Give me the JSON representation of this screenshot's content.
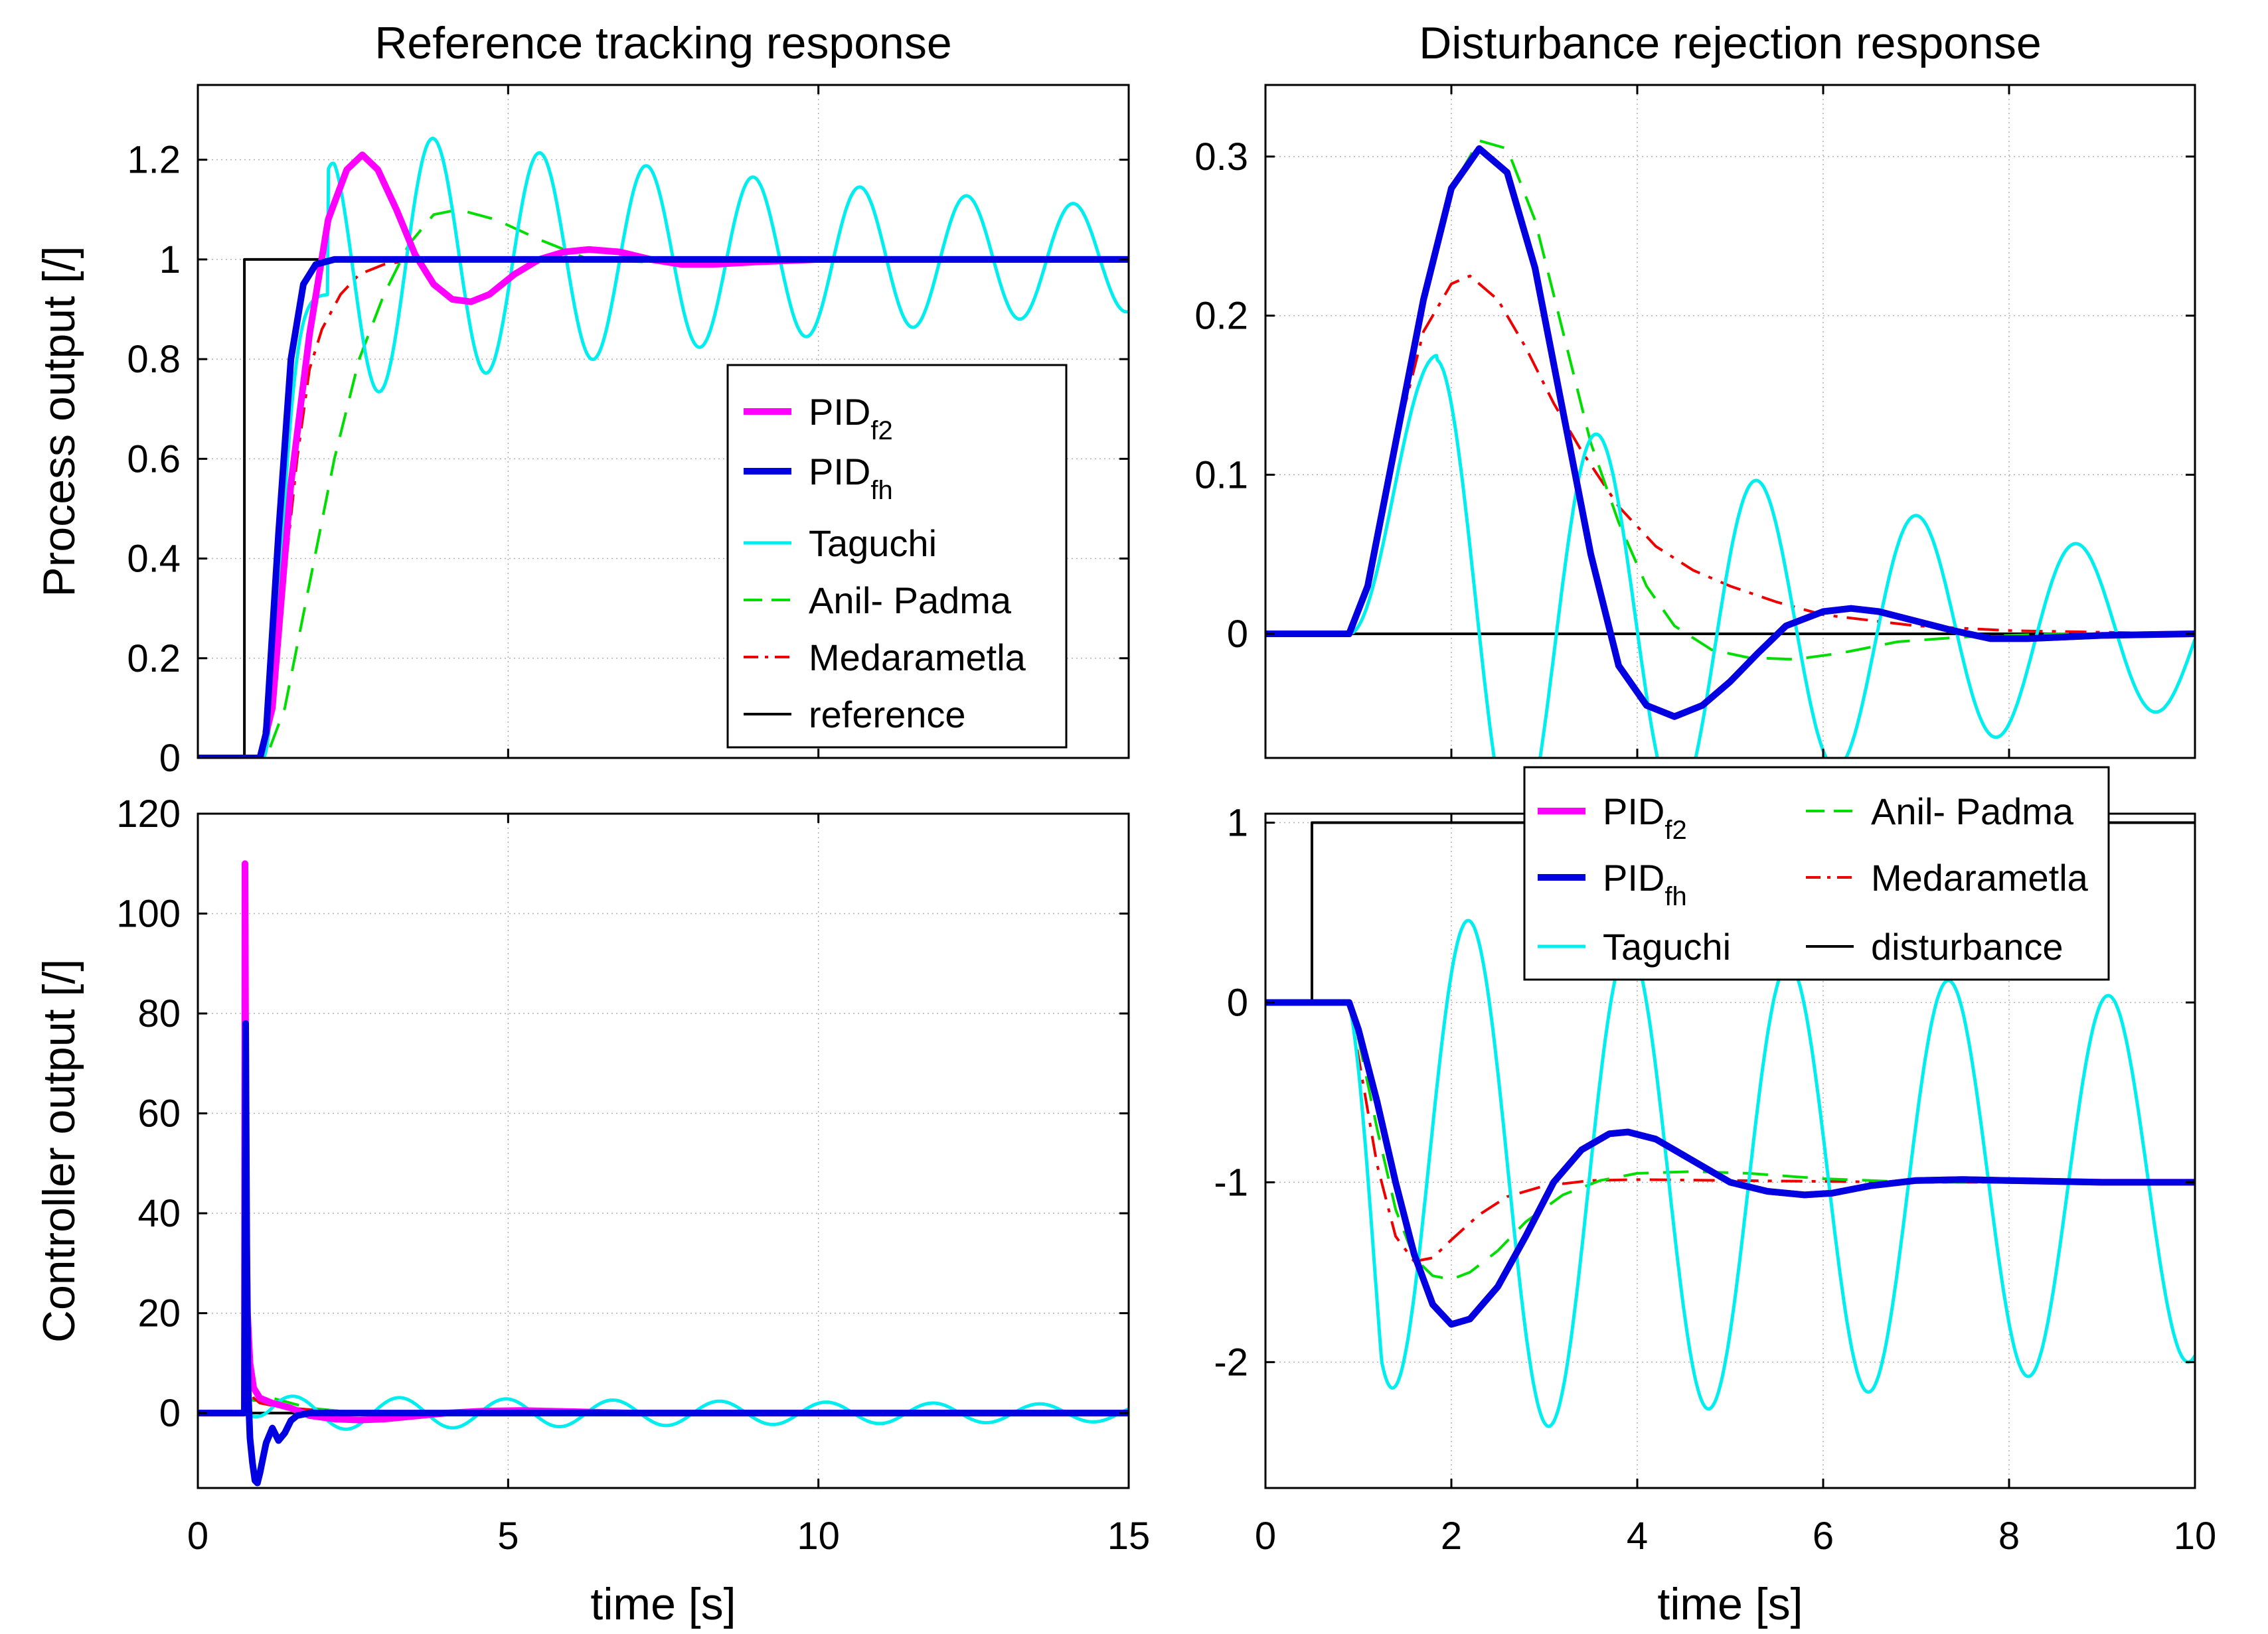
{
  "colors": {
    "PIDf2": "#ff00ff",
    "PIDfh": "#0000e0",
    "Taguchi": "#00eeee",
    "AnilPadma": "#00dd00",
    "Medarametla": "#ee0000",
    "black": "#000000"
  },
  "chart_data": [
    {
      "id": "ref_y",
      "type": "line",
      "title": "Reference tracking response",
      "xlabel": "",
      "ylabel": "Process output [/]",
      "xlim": [
        0,
        15
      ],
      "ylim": [
        0,
        1.35
      ],
      "xticks": [
        0,
        5,
        10,
        15
      ],
      "yticks": [
        0,
        0.2,
        0.4,
        0.6,
        0.8,
        1,
        1.2
      ],
      "ytick_labels": [
        "0",
        "0.2",
        "0.4",
        "0.6",
        "0.8",
        "1",
        "1.2"
      ],
      "grid": true,
      "legend": {
        "placement": "center-right",
        "entries": [
          {
            "series": "PIDf2",
            "label": "PID",
            "sub": "f2"
          },
          {
            "series": "PIDfh",
            "label": "PID",
            "sub": "fh"
          },
          {
            "series": "Taguchi",
            "label": "Taguchi"
          },
          {
            "series": "AnilPadma",
            "label": "Anil- Padma"
          },
          {
            "series": "Medarametla",
            "label": "Medarametla"
          },
          {
            "series": "reference",
            "label": "reference"
          }
        ]
      },
      "series": [
        {
          "name": "reference",
          "style": "black",
          "x": [
            0,
            0.75,
            0.75,
            15
          ],
          "y": [
            0,
            0,
            1,
            1
          ]
        },
        {
          "name": "Medarametla",
          "style": "Medarametla",
          "x": [
            0,
            1.0,
            1.3,
            1.6,
            1.8,
            2.0,
            2.3,
            2.6,
            3.0,
            3.5,
            4.0,
            5.0,
            6.0,
            8.0,
            15
          ],
          "y": [
            0,
            0,
            0.25,
            0.6,
            0.78,
            0.86,
            0.93,
            0.97,
            0.99,
            1.0,
            1.0,
            1.0,
            1.0,
            1.0,
            1.0
          ]
        },
        {
          "name": "AnilPadma",
          "style": "AnilPadma",
          "x": [
            0,
            1.1,
            1.4,
            1.8,
            2.2,
            2.6,
            3.0,
            3.4,
            3.8,
            4.2,
            4.8,
            5.5,
            6.3,
            7.2,
            8.0,
            9.0,
            15
          ],
          "y": [
            0,
            0,
            0.1,
            0.35,
            0.6,
            0.8,
            0.93,
            1.03,
            1.09,
            1.1,
            1.08,
            1.04,
            1.0,
            0.995,
            0.995,
            1.0,
            1.0
          ]
        },
        {
          "name": "Taguchi",
          "style": "Taguchi",
          "formula": "taguchiRef",
          "x0": 1.0,
          "x1": 15
        },
        {
          "name": "PIDf2",
          "style": "PIDf2",
          "x": [
            0,
            1.0,
            1.2,
            1.5,
            1.8,
            2.1,
            2.4,
            2.65,
            2.9,
            3.2,
            3.5,
            3.8,
            4.1,
            4.4,
            4.7,
            5.1,
            5.5,
            5.9,
            6.3,
            6.8,
            7.3,
            7.8,
            8.3,
            9.0,
            10,
            15
          ],
          "y": [
            0,
            0,
            0.1,
            0.55,
            0.85,
            1.08,
            1.18,
            1.21,
            1.18,
            1.1,
            1.01,
            0.95,
            0.92,
            0.915,
            0.93,
            0.97,
            1.0,
            1.015,
            1.02,
            1.015,
            1.0,
            0.99,
            0.99,
            0.995,
            1.0,
            1.0
          ]
        },
        {
          "name": "PIDfh",
          "style": "PIDfh",
          "x": [
            0,
            1.0,
            1.1,
            1.3,
            1.5,
            1.7,
            1.9,
            2.2,
            2.6,
            3.0,
            15
          ],
          "y": [
            0,
            0,
            0.05,
            0.45,
            0.8,
            0.95,
            0.99,
            1.0,
            1.0,
            1.0,
            1.0
          ]
        }
      ]
    },
    {
      "id": "dist_y",
      "type": "line",
      "title": "Disturbance rejection response",
      "xlabel": "",
      "ylabel": "",
      "xlim": [
        0,
        10
      ],
      "ylim": [
        -0.078,
        0.345
      ],
      "xticks": [
        0,
        2,
        4,
        6,
        8,
        10
      ],
      "yticks": [
        0,
        0.1,
        0.2,
        0.3
      ],
      "ytick_labels": [
        "0",
        "0.1",
        "0.2",
        "0.3"
      ],
      "grid": true,
      "series": [
        {
          "name": "zero",
          "style": "black",
          "x": [
            0,
            10
          ],
          "y": [
            0,
            0
          ]
        },
        {
          "name": "Medarametla",
          "style": "Medarametla",
          "x": [
            0,
            0.9,
            1.1,
            1.4,
            1.7,
            2.0,
            2.2,
            2.5,
            2.8,
            3.1,
            3.4,
            3.8,
            4.2,
            4.6,
            5.0,
            5.5,
            6.0,
            7.0,
            8.0,
            10
          ],
          "y": [
            0,
            0,
            0.03,
            0.12,
            0.19,
            0.22,
            0.225,
            0.21,
            0.18,
            0.145,
            0.115,
            0.08,
            0.055,
            0.04,
            0.03,
            0.02,
            0.012,
            0.005,
            0.002,
            0
          ]
        },
        {
          "name": "AnilPadma",
          "style": "AnilPadma",
          "x": [
            0,
            0.9,
            1.1,
            1.4,
            1.7,
            2.0,
            2.3,
            2.6,
            2.9,
            3.2,
            3.5,
            3.8,
            4.1,
            4.4,
            4.8,
            5.2,
            5.7,
            6.2,
            6.8,
            7.5,
            8.5,
            10
          ],
          "y": [
            0,
            0,
            0.03,
            0.12,
            0.21,
            0.28,
            0.31,
            0.305,
            0.26,
            0.19,
            0.12,
            0.07,
            0.03,
            0.005,
            -0.01,
            -0.015,
            -0.016,
            -0.012,
            -0.005,
            -0.002,
            0,
            0
          ]
        },
        {
          "name": "Taguchi",
          "style": "Taguchi",
          "formula": "taguchiDist",
          "x0": 0.9,
          "x1": 10
        },
        {
          "name": "PIDf2",
          "style": "PIDf2",
          "x": [
            0,
            0.9,
            1.1,
            1.4,
            1.7,
            2.0,
            2.3,
            2.6,
            2.9,
            3.2,
            3.5,
            3.8,
            4.1,
            4.4,
            4.7,
            5.0,
            5.3,
            5.6,
            6.0,
            6.3,
            6.6,
            7.0,
            7.4,
            7.8,
            8.2,
            9.0,
            10
          ],
          "y": [
            0,
            0,
            0.03,
            0.12,
            0.21,
            0.28,
            0.305,
            0.29,
            0.23,
            0.14,
            0.05,
            -0.02,
            -0.045,
            -0.052,
            -0.045,
            -0.03,
            -0.012,
            0.005,
            0.014,
            0.016,
            0.014,
            0.008,
            0.002,
            -0.003,
            -0.003,
            -0.001,
            0
          ]
        },
        {
          "name": "PIDfh",
          "style": "PIDfh",
          "x": [
            0,
            0.9,
            1.1,
            1.4,
            1.7,
            2.0,
            2.3,
            2.6,
            2.9,
            3.2,
            3.5,
            3.8,
            4.1,
            4.4,
            4.7,
            5.0,
            5.3,
            5.6,
            6.0,
            6.3,
            6.6,
            7.0,
            7.4,
            7.8,
            8.2,
            9.0,
            10
          ],
          "y": [
            0,
            0,
            0.03,
            0.12,
            0.21,
            0.28,
            0.305,
            0.29,
            0.23,
            0.14,
            0.05,
            -0.02,
            -0.045,
            -0.052,
            -0.045,
            -0.03,
            -0.012,
            0.005,
            0.014,
            0.016,
            0.014,
            0.008,
            0.002,
            -0.003,
            -0.003,
            -0.001,
            0
          ]
        }
      ]
    },
    {
      "id": "ref_u",
      "type": "line",
      "title": "",
      "xlabel": "time [s]",
      "ylabel": "Controller output [/]",
      "xlim": [
        0,
        15
      ],
      "ylim": [
        -15,
        120
      ],
      "xticks": [
        0,
        5,
        10,
        15
      ],
      "yticks": [
        0,
        20,
        40,
        60,
        80,
        100,
        120
      ],
      "ytick_labels": [
        "0",
        "20",
        "40",
        "60",
        "80",
        "100",
        "120"
      ],
      "grid": true,
      "series": [
        {
          "name": "zero",
          "style": "black",
          "x": [
            0,
            15
          ],
          "y": [
            0,
            0
          ]
        },
        {
          "name": "AnilPadma",
          "style": "AnilPadma",
          "x": [
            0,
            0.75,
            0.76,
            0.8,
            0.9,
            1.0,
            1.2,
            1.5,
            1.8,
            2.2,
            3.0,
            4.0,
            15
          ],
          "y": [
            0,
            0,
            6,
            3,
            2.5,
            2.5,
            3,
            2,
            1,
            0.5,
            0,
            0,
            0
          ]
        },
        {
          "name": "Medarametla",
          "style": "Medarametla",
          "x": [
            0,
            0.75,
            0.76,
            0.8,
            0.9,
            1.0,
            1.2,
            1.5,
            2.0,
            3.0,
            15
          ],
          "y": [
            0,
            0,
            10,
            6,
            3,
            2,
            1.5,
            1,
            0.5,
            0,
            0
          ]
        },
        {
          "name": "Taguchi",
          "style": "Taguchi",
          "formula": "taguchiU",
          "x0": 0.75,
          "x1": 15
        },
        {
          "name": "PIDf2",
          "style": "PIDf2",
          "x": [
            0,
            0.75,
            0.76,
            0.78,
            0.8,
            0.84,
            0.9,
            1.0,
            1.2,
            1.5,
            1.8,
            2.2,
            2.6,
            3.0,
            3.5,
            4.0,
            4.6,
            5.2,
            6.0,
            7.0,
            15
          ],
          "y": [
            0,
            0,
            110,
            40,
            20,
            10,
            5,
            3,
            2,
            1,
            -0.5,
            -1.2,
            -1.4,
            -1.2,
            -0.6,
            0,
            0.4,
            0.5,
            0.3,
            0,
            0
          ]
        },
        {
          "name": "PIDfh",
          "style": "PIDfh",
          "x": [
            0,
            0.75,
            0.77,
            0.79,
            0.81,
            0.84,
            0.88,
            0.92,
            0.96,
            1.0,
            1.05,
            1.1,
            1.2,
            1.3,
            1.4,
            1.5,
            1.6,
            1.8,
            2.0,
            2.5,
            15
          ],
          "y": [
            0,
            0,
            78,
            30,
            5,
            -5,
            -10,
            -13.5,
            -14,
            -12,
            -9,
            -6,
            -3,
            -5.5,
            -4,
            -1.5,
            -0.5,
            0,
            0,
            0,
            0
          ]
        }
      ]
    },
    {
      "id": "dist_u",
      "type": "line",
      "title": "",
      "xlabel": "time [s]",
      "ylabel": "",
      "xlim": [
        0,
        10
      ],
      "ylim": [
        -2.7,
        1.05
      ],
      "xticks": [
        0,
        2,
        4,
        6,
        8,
        10
      ],
      "yticks": [
        -2,
        -1,
        0,
        1
      ],
      "ytick_labels": [
        "-2",
        "-1",
        "0",
        "1"
      ],
      "grid": true,
      "legend": {
        "placement": "top",
        "entries": [
          {
            "series": "PIDf2",
            "label": "PID",
            "sub": "f2"
          },
          {
            "series": "PIDfh",
            "label": "PID",
            "sub": "fh"
          },
          {
            "series": "Taguchi",
            "label": "Taguchi"
          },
          {
            "series": "AnilPadma",
            "label": "Anil- Padma"
          },
          {
            "series": "Medarametla",
            "label": "Medarametla"
          },
          {
            "series": "disturbance",
            "label": "disturbance"
          }
        ]
      },
      "series": [
        {
          "name": "disturbance",
          "style": "black",
          "x": [
            0,
            0.5,
            0.5,
            10
          ],
          "y": [
            0,
            0,
            1,
            1
          ]
        },
        {
          "name": "Medarametla",
          "style": "Medarametla",
          "x": [
            0,
            0.9,
            1.0,
            1.2,
            1.4,
            1.6,
            1.8,
            2.0,
            2.3,
            2.6,
            3.0,
            3.5,
            4.0,
            5.0,
            6.0,
            7.0,
            8.0,
            10
          ],
          "y": [
            0,
            0,
            -0.3,
            -0.9,
            -1.3,
            -1.44,
            -1.42,
            -1.32,
            -1.18,
            -1.08,
            -1.02,
            -0.99,
            -0.985,
            -0.99,
            -0.995,
            -1.0,
            -1.0,
            -1.0
          ]
        },
        {
          "name": "AnilPadma",
          "style": "AnilPadma",
          "x": [
            0,
            0.9,
            1.0,
            1.2,
            1.4,
            1.6,
            1.8,
            2.0,
            2.2,
            2.5,
            2.8,
            3.2,
            3.6,
            4.0,
            4.6,
            5.2,
            6.0,
            7.0,
            8.0,
            9.0,
            10
          ],
          "y": [
            0,
            0,
            -0.2,
            -0.7,
            -1.15,
            -1.42,
            -1.52,
            -1.54,
            -1.5,
            -1.38,
            -1.22,
            -1.07,
            -0.99,
            -0.95,
            -0.94,
            -0.95,
            -0.98,
            -1.0,
            -1.0,
            -1.0,
            -1.0
          ]
        },
        {
          "name": "Taguchi",
          "style": "Taguchi",
          "formula": "taguchiDu",
          "x0": 0.9,
          "x1": 10
        },
        {
          "name": "PIDf2",
          "style": "PIDf2",
          "x": [
            0,
            0.9,
            1.0,
            1.2,
            1.4,
            1.6,
            1.8,
            2.0,
            2.2,
            2.5,
            2.8,
            3.1,
            3.4,
            3.7,
            3.9,
            4.2,
            4.6,
            5.0,
            5.4,
            5.8,
            6.1,
            6.5,
            7.0,
            7.5,
            8.0,
            9.0,
            10
          ],
          "y": [
            0,
            0,
            -0.15,
            -0.55,
            -1.0,
            -1.4,
            -1.68,
            -1.79,
            -1.76,
            -1.58,
            -1.3,
            -1.0,
            -0.82,
            -0.73,
            -0.72,
            -0.76,
            -0.88,
            -1.0,
            -1.05,
            -1.07,
            -1.06,
            -1.02,
            -0.99,
            -0.985,
            -0.99,
            -1.0,
            -1.0
          ]
        },
        {
          "name": "PIDfh",
          "style": "PIDfh",
          "x": [
            0,
            0.9,
            1.0,
            1.2,
            1.4,
            1.6,
            1.8,
            2.0,
            2.2,
            2.5,
            2.8,
            3.1,
            3.4,
            3.7,
            3.9,
            4.2,
            4.6,
            5.0,
            5.4,
            5.8,
            6.1,
            6.5,
            7.0,
            7.5,
            8.0,
            9.0,
            10
          ],
          "y": [
            0,
            0,
            -0.15,
            -0.55,
            -1.0,
            -1.4,
            -1.68,
            -1.79,
            -1.76,
            -1.58,
            -1.3,
            -1.0,
            -0.82,
            -0.73,
            -0.72,
            -0.76,
            -0.88,
            -1.0,
            -1.05,
            -1.07,
            -1.06,
            -1.02,
            -0.99,
            -0.985,
            -0.99,
            -1.0,
            -1.0
          ]
        }
      ]
    }
  ]
}
